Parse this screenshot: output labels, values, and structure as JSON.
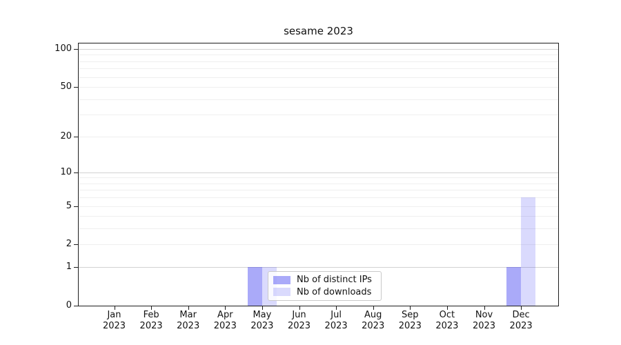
{
  "chart_data": {
    "type": "bar",
    "title": "sesame 2023",
    "year_label": "2023",
    "categories": [
      "Jan",
      "Feb",
      "Mar",
      "Apr",
      "May",
      "Jun",
      "Jul",
      "Aug",
      "Sep",
      "Oct",
      "Nov",
      "Dec"
    ],
    "series": [
      {
        "name": "Nb of distinct IPs",
        "color": "rgba(25,25,240,0.37)",
        "values": [
          0,
          0,
          0,
          0,
          1,
          0,
          0,
          0,
          0,
          0,
          0,
          1
        ]
      },
      {
        "name": "Nb of downloads",
        "color": "rgba(25,25,240,0.16)",
        "values": [
          0,
          0,
          0,
          0,
          1,
          0,
          0,
          0,
          0,
          0,
          0,
          6
        ]
      }
    ],
    "xlabel": "",
    "ylabel": "",
    "y_scale": "log1p",
    "y_ticks": [
      0,
      1,
      2,
      5,
      10,
      20,
      50,
      100
    ],
    "y_minor_gridlines": [
      2,
      3,
      4,
      5,
      6,
      7,
      8,
      9,
      20,
      30,
      40,
      50,
      60,
      70,
      80,
      90
    ],
    "y_major_gridlines": [
      1,
      10,
      100
    ],
    "ylim": [
      0,
      110
    ],
    "grid": "horizontal",
    "legend_position": "lower-center"
  }
}
